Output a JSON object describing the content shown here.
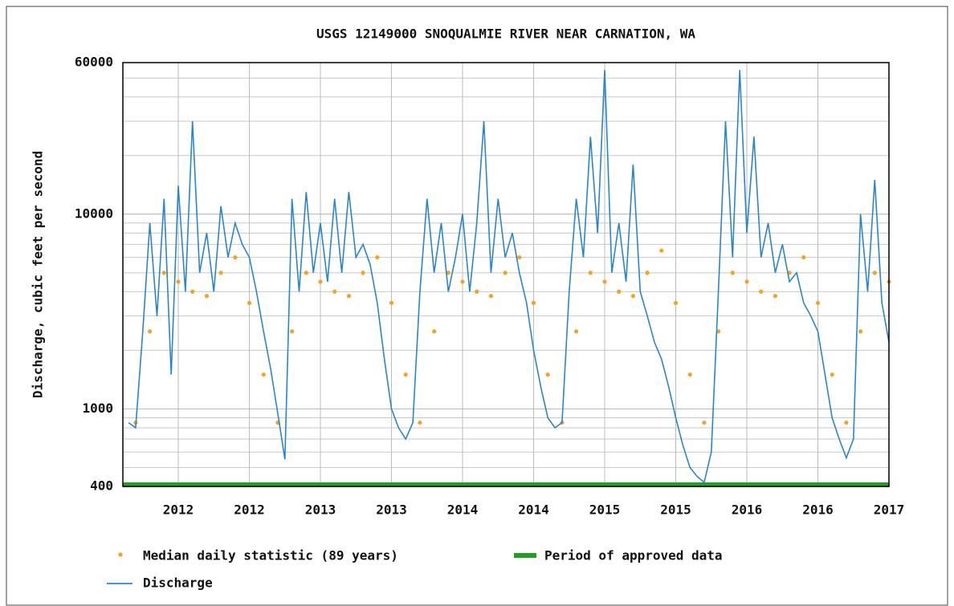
{
  "chart_data": {
    "type": "line",
    "title": "USGS 12149000 SNOQUALMIE RIVER NEAR CARNATION, WA",
    "y_label": "Discharge, cubic feet per second",
    "log_y": true,
    "grid": true,
    "ylim": [
      400,
      60000
    ],
    "yticks": [
      400,
      1000,
      10000,
      60000
    ],
    "xlim": [
      2011.61,
      2017.0
    ],
    "xticks": [
      {
        "value": 2012.0,
        "label": "2012"
      },
      {
        "value": 2012.5,
        "label": "2012"
      },
      {
        "value": 2013.0,
        "label": "2013"
      },
      {
        "value": 2013.5,
        "label": "2013"
      },
      {
        "value": 2014.0,
        "label": "2014"
      },
      {
        "value": 2014.5,
        "label": "2014"
      },
      {
        "value": 2015.0,
        "label": "2015"
      },
      {
        "value": 2015.5,
        "label": "2015"
      },
      {
        "value": 2016.0,
        "label": "2016"
      },
      {
        "value": 2016.5,
        "label": "2016"
      },
      {
        "value": 2017.0,
        "label": "2017"
      }
    ],
    "series": [
      {
        "name": "Median daily statistic (89 years)",
        "type": "scatter",
        "color": "#f5a21f",
        "x": [
          2011.7,
          2011.8,
          2011.9,
          2012.0,
          2012.1,
          2012.2,
          2012.3,
          2012.4,
          2012.5,
          2012.6,
          2012.7,
          2012.8,
          2012.9,
          2013.0,
          2013.1,
          2013.2,
          2013.3,
          2013.4,
          2013.5,
          2013.6,
          2013.7,
          2013.8,
          2013.9,
          2014.0,
          2014.1,
          2014.2,
          2014.3,
          2014.4,
          2014.5,
          2014.6,
          2014.7,
          2014.8,
          2014.9,
          2015.0,
          2015.1,
          2015.2,
          2015.3,
          2015.4,
          2015.5,
          2015.6,
          2015.7,
          2015.8,
          2015.9,
          2016.0,
          2016.1,
          2016.2,
          2016.3,
          2016.4,
          2016.5,
          2016.6,
          2016.7,
          2016.8,
          2016.9,
          2017.0
        ],
        "values": [
          850,
          2500,
          5000,
          4500,
          4000,
          3800,
          5000,
          6000,
          3500,
          1500,
          850,
          2500,
          5000,
          4500,
          4000,
          3800,
          5000,
          6000,
          3500,
          1500,
          850,
          2500,
          5000,
          4500,
          4000,
          3800,
          5000,
          6000,
          3500,
          1500,
          850,
          2500,
          5000,
          4500,
          4000,
          3800,
          5000,
          6500,
          3500,
          1500,
          850,
          2500,
          5000,
          4500,
          4000,
          3800,
          5000,
          6000,
          3500,
          1500,
          850,
          2500,
          5000,
          4500
        ]
      },
      {
        "name": "Period of approved data",
        "type": "band",
        "color": "#1fa01f",
        "x": [
          2011.61,
          2017.0
        ],
        "values": [
          400,
          400
        ]
      },
      {
        "name": "Discharge",
        "type": "line",
        "color": "#2a86c8",
        "x": [
          2011.65,
          2011.7,
          2011.75,
          2011.8,
          2011.85,
          2011.9,
          2011.95,
          2012.0,
          2012.05,
          2012.1,
          2012.15,
          2012.2,
          2012.25,
          2012.3,
          2012.35,
          2012.4,
          2012.45,
          2012.5,
          2012.55,
          2012.6,
          2012.65,
          2012.7,
          2012.75,
          2012.8,
          2012.85,
          2012.9,
          2012.95,
          2013.0,
          2013.05,
          2013.1,
          2013.15,
          2013.2,
          2013.25,
          2013.3,
          2013.35,
          2013.4,
          2013.45,
          2013.5,
          2013.55,
          2013.6,
          2013.65,
          2013.7,
          2013.75,
          2013.8,
          2013.85,
          2013.9,
          2013.95,
          2014.0,
          2014.05,
          2014.1,
          2014.15,
          2014.2,
          2014.25,
          2014.3,
          2014.35,
          2014.4,
          2014.45,
          2014.5,
          2014.55,
          2014.6,
          2014.65,
          2014.7,
          2014.75,
          2014.8,
          2014.85,
          2014.9,
          2014.95,
          2015.0,
          2015.05,
          2015.1,
          2015.15,
          2015.2,
          2015.25,
          2015.3,
          2015.35,
          2015.4,
          2015.45,
          2015.5,
          2015.55,
          2015.6,
          2015.65,
          2015.7,
          2015.75,
          2015.8,
          2015.85,
          2015.9,
          2015.95,
          2016.0,
          2016.05,
          2016.1,
          2016.15,
          2016.2,
          2016.25,
          2016.3,
          2016.35,
          2016.4,
          2016.45,
          2016.5,
          2016.55,
          2016.6,
          2016.65,
          2016.7,
          2016.75,
          2016.8,
          2016.85,
          2016.9,
          2016.95,
          2017.0
        ],
        "values": [
          850,
          800,
          2500,
          9000,
          3000,
          12000,
          1500,
          14000,
          4000,
          30000,
          5000,
          8000,
          4000,
          11000,
          6000,
          9000,
          7000,
          6000,
          4000,
          2500,
          1600,
          950,
          550,
          12000,
          4000,
          13000,
          5000,
          9000,
          4500,
          12000,
          5000,
          13000,
          6000,
          7000,
          5500,
          3500,
          1800,
          1000,
          800,
          700,
          850,
          4000,
          12000,
          5000,
          9000,
          4000,
          6000,
          10000,
          4000,
          9000,
          30000,
          5000,
          12000,
          6000,
          8000,
          5000,
          3500,
          2000,
          1300,
          900,
          800,
          850,
          4000,
          12000,
          6000,
          25000,
          8000,
          55000,
          5000,
          9000,
          4500,
          18000,
          4000,
          3000,
          2200,
          1800,
          1300,
          900,
          650,
          500,
          450,
          420,
          600,
          4000,
          30000,
          6000,
          55000,
          8000,
          25000,
          6000,
          9000,
          5000,
          7000,
          4500,
          5000,
          3500,
          3000,
          2500,
          1500,
          900,
          700,
          560,
          700,
          10000,
          4000,
          15000,
          3500,
          2200
        ]
      }
    ]
  }
}
